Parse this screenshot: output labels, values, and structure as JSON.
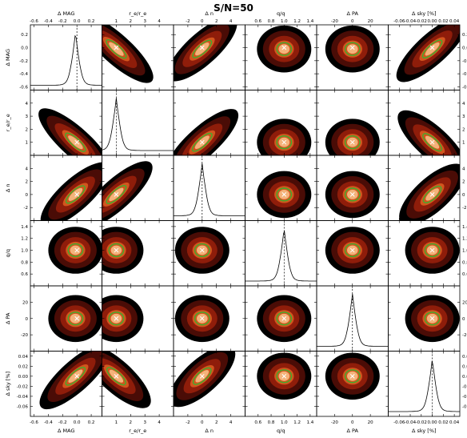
{
  "chart_data": {
    "type": "corner",
    "title": "S/N=50",
    "variables": [
      {
        "name": "Δ MAG",
        "range": [
          -0.65,
          0.35
        ],
        "ticks": [
          -0.6,
          -0.4,
          -0.2,
          0.0,
          0.2
        ],
        "tick_labels": [
          "-0.6",
          "-0.4",
          "-0.2",
          "0.0",
          "0.2"
        ],
        "true_value": 0.0,
        "peak": -0.02
      },
      {
        "name": "r_e/r_e",
        "range": [
          0.0,
          5.0
        ],
        "ticks": [
          1,
          2,
          3,
          4
        ],
        "tick_labels": [
          "1",
          "2",
          "3",
          "4"
        ],
        "true_value": 1.0,
        "peak": 1.0
      },
      {
        "name": "Δ n",
        "range": [
          -4.0,
          6.0
        ],
        "ticks": [
          -2,
          0,
          2,
          4
        ],
        "tick_labels": [
          "-2",
          "0",
          "2",
          "4"
        ],
        "true_value": 0.0,
        "peak": 0.0
      },
      {
        "name": "q/q",
        "range": [
          0.4,
          1.5
        ],
        "ticks": [
          0.6,
          0.8,
          1.0,
          1.2,
          1.4
        ],
        "tick_labels": [
          "0.6",
          "0.8",
          "1.0",
          "1.2",
          "1.4"
        ],
        "true_value": 1.0,
        "peak": 1.0
      },
      {
        "name": "Δ PA",
        "range": [
          -40.0,
          40.0
        ],
        "ticks": [
          -20,
          0,
          20
        ],
        "tick_labels": [
          "-20",
          "0",
          "20"
        ],
        "true_value": 0.0,
        "peak": 0.0
      },
      {
        "name": "Δ sky [%]",
        "range": [
          -0.08,
          0.05
        ],
        "ticks": [
          -0.06,
          -0.04,
          -0.02,
          0.0,
          0.02,
          0.04
        ],
        "tick_labels": [
          "-0.06",
          "-0.04",
          "-0.02",
          "0.00",
          "0.02",
          "0.04"
        ],
        "true_value": 0.0,
        "peak": 0.0
      }
    ],
    "grid": false,
    "layout": "6x6 grid of panels: diagonal panels show 1D marginal distributions (dotted line marks true value), off-diagonal panels show 2D density contours (black, dark red, red, orange, yellow levels) with a green contour and a marker at the true value",
    "density_levels": [
      "black",
      "dark red",
      "red",
      "orange",
      "yellow"
    ],
    "colors": {
      "level1": "#000000",
      "level2": "#4a0c06",
      "level3": "#8f1d0a",
      "level4": "#d2551e",
      "level5": "#f4b37a",
      "contour": "#3fae2e",
      "marker": "#ffffff"
    },
    "correlations": [
      [
        1.0,
        -0.85,
        0.72,
        0.0,
        0.0,
        0.78
      ],
      [
        -0.85,
        1.0,
        0.8,
        0.0,
        0.1,
        -0.7
      ],
      [
        0.72,
        0.8,
        1.0,
        0.0,
        0.0,
        0.6
      ],
      [
        0.0,
        0.0,
        0.0,
        1.0,
        0.0,
        0.0
      ],
      [
        0.0,
        0.1,
        0.0,
        0.0,
        1.0,
        0.0
      ],
      [
        0.78,
        -0.7,
        0.6,
        0.0,
        0.0,
        1.0
      ]
    ]
  }
}
